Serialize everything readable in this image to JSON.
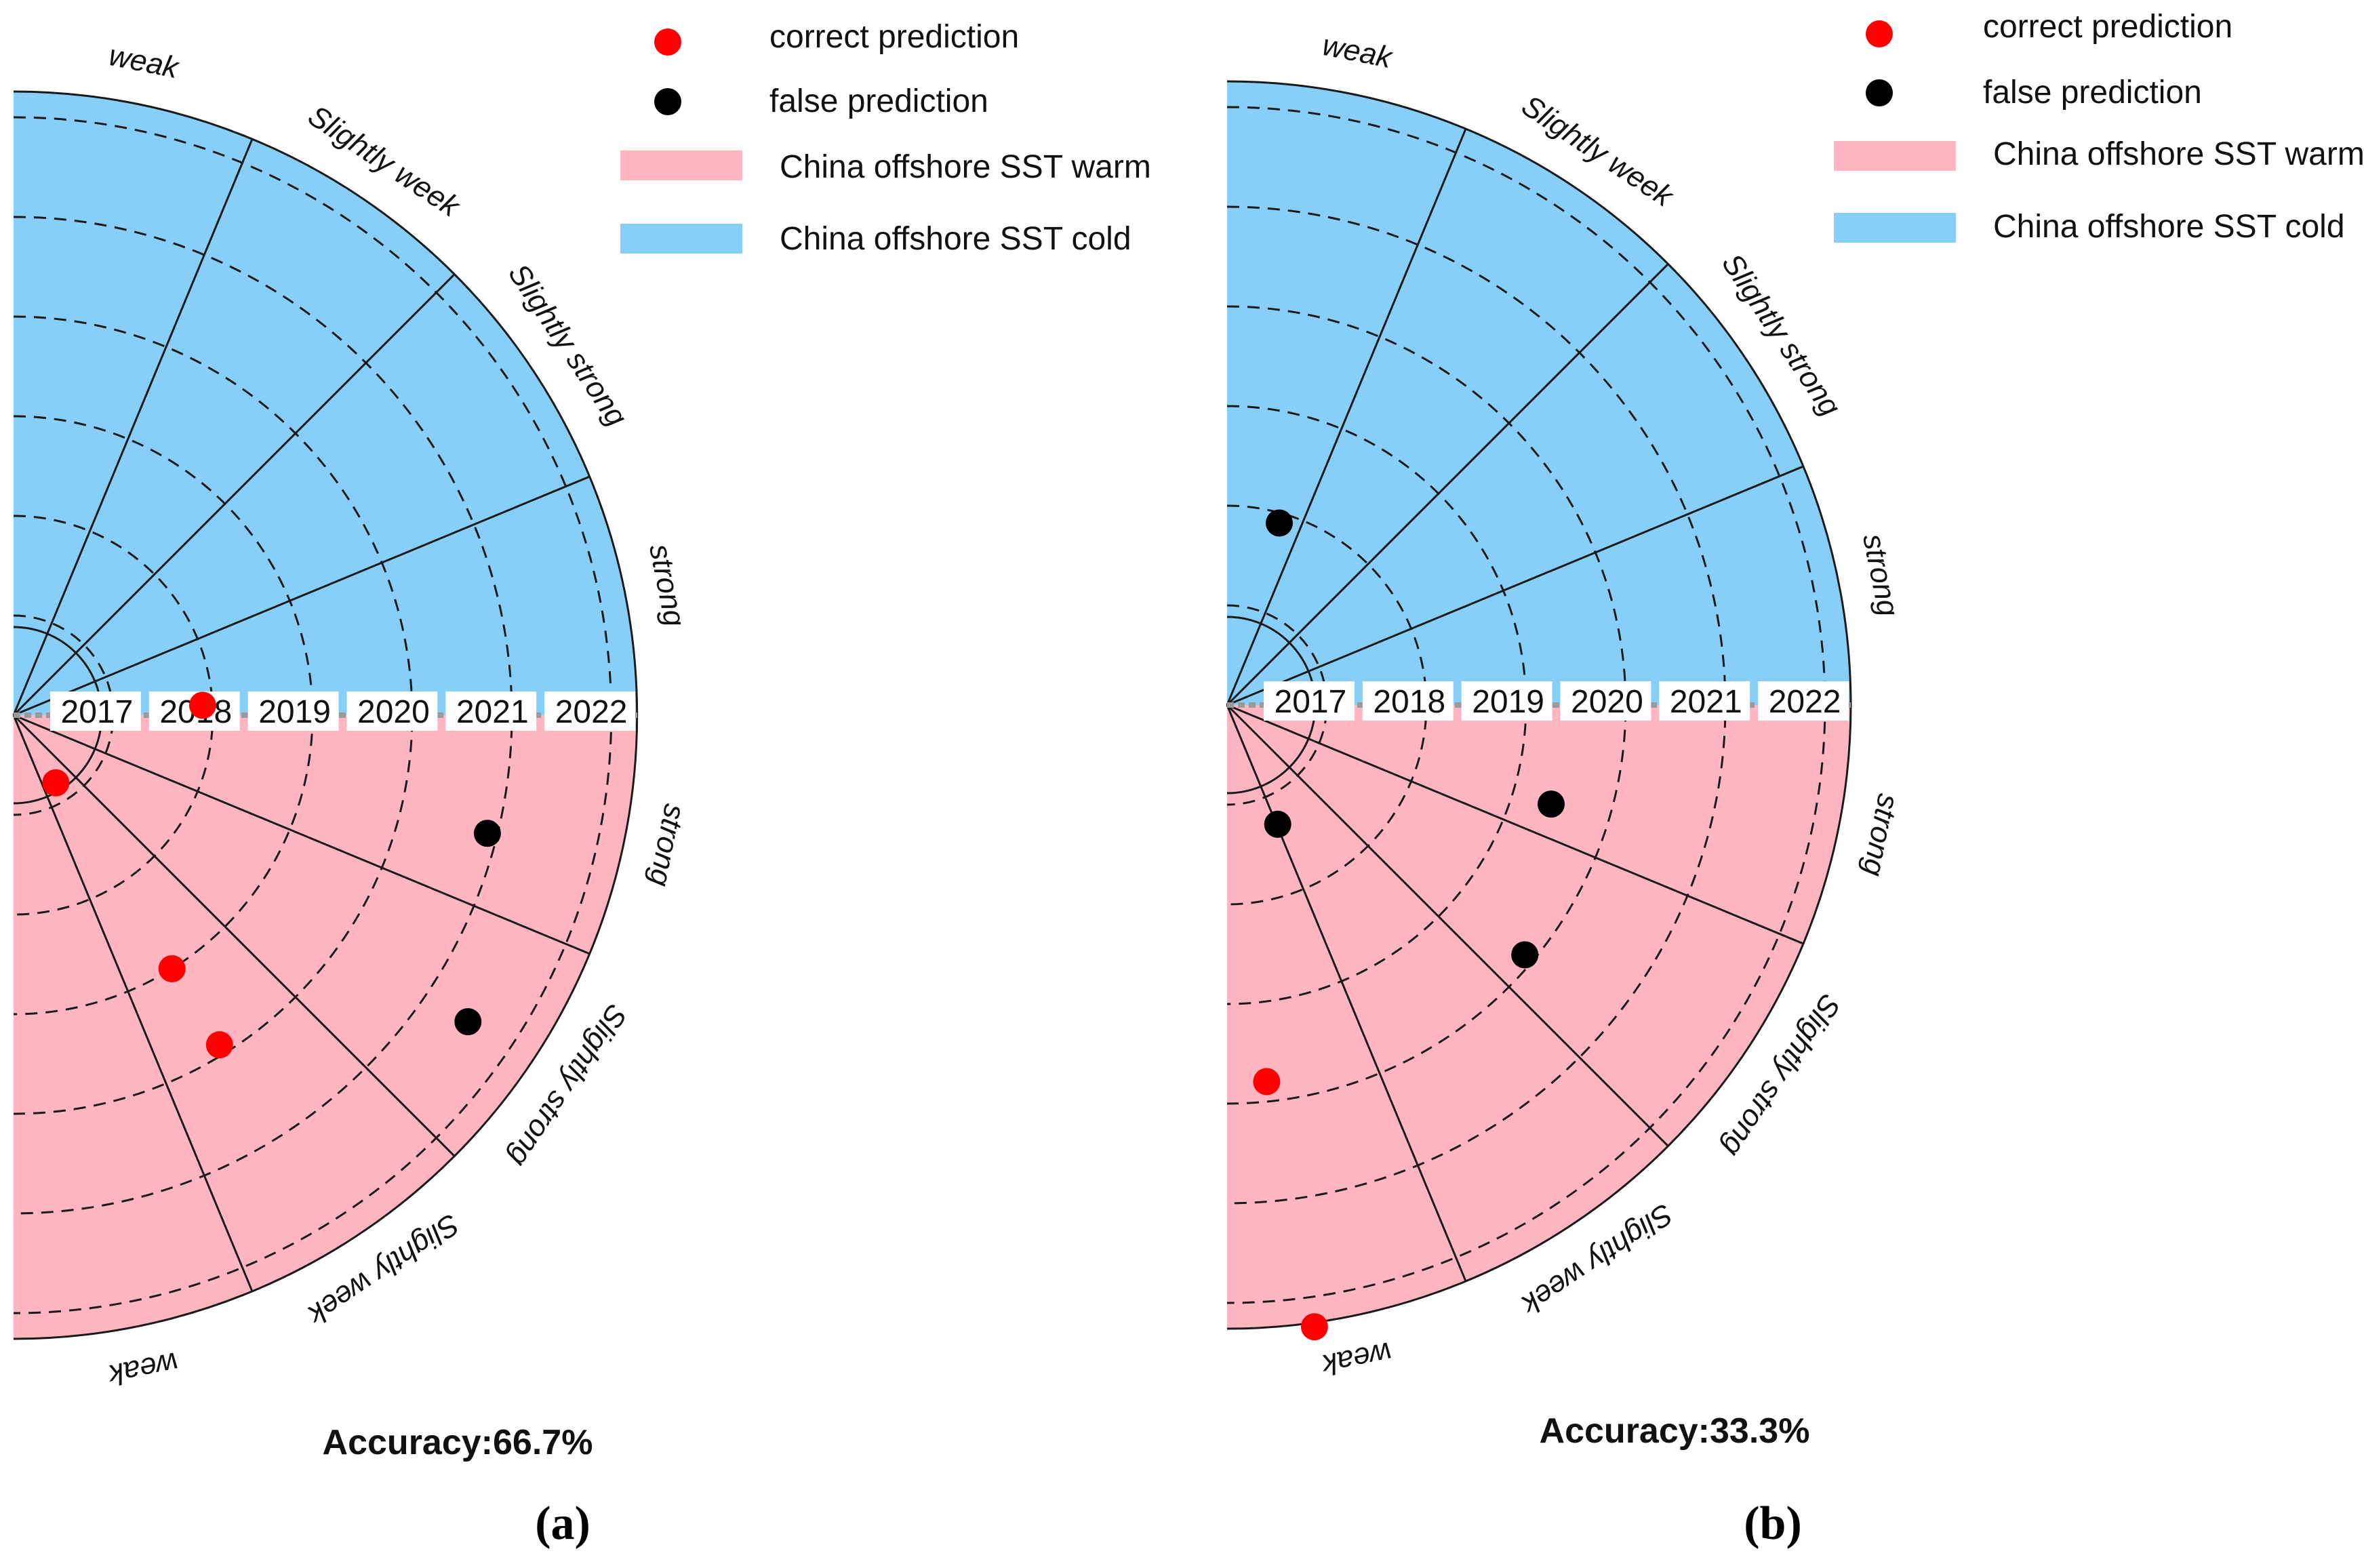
{
  "legend": {
    "correct_label": "correct prediction",
    "false_label": "false prediction",
    "warm_label": "China offshore SST warm",
    "cold_label": "China offshore SST cold"
  },
  "colors": {
    "cold": "#87CEF9",
    "warm": "#FFB6C1",
    "correct": "#FF0000",
    "false": "#000000",
    "grid": "#1a1a1a"
  },
  "chart_data": [
    {
      "type": "polar-scatter",
      "panel_label": "(a)",
      "years": [
        "2017",
        "2018",
        "2019",
        "2020",
        "2021",
        "2022"
      ],
      "cold_sectors": [
        "weak",
        "Slightly week",
        "Slightly strong",
        "strong"
      ],
      "warm_sectors": [
        "strong",
        "Slightly strong",
        "Slightly week",
        "weak"
      ],
      "accuracy_text": "Accuracy:66.7%",
      "accuracy": 66.7,
      "points": [
        {
          "year_index": 1.9,
          "angle_deg": 3,
          "half": "cold",
          "result": "correct"
        },
        {
          "year_index": 0.8,
          "angle_deg": 58,
          "half": "warm",
          "result": "correct"
        },
        {
          "year_index": 4.9,
          "angle_deg": 14,
          "half": "warm",
          "result": "false"
        },
        {
          "year_index": 3.0,
          "angle_deg": 58,
          "half": "warm",
          "result": "correct"
        },
        {
          "year_index": 3.9,
          "angle_deg": 58,
          "half": "warm",
          "result": "correct"
        },
        {
          "year_index": 5.5,
          "angle_deg": 34,
          "half": "warm",
          "result": "false"
        }
      ]
    },
    {
      "type": "polar-scatter",
      "panel_label": "(b)",
      "years": [
        "2017",
        "2018",
        "2019",
        "2020",
        "2021",
        "2022"
      ],
      "cold_sectors": [
        "weak",
        "Slightly week",
        "Slightly strong",
        "strong"
      ],
      "warm_sectors": [
        "strong",
        "Slightly strong",
        "Slightly week",
        "weak"
      ],
      "accuracy_text": "Accuracy:33.3%",
      "accuracy": 33.3,
      "points": [
        {
          "year_index": 1.9,
          "angle_deg": 74,
          "half": "cold",
          "result": "false"
        },
        {
          "year_index": 1.3,
          "angle_deg": 67,
          "half": "warm",
          "result": "false"
        },
        {
          "year_index": 3.4,
          "angle_deg": 17,
          "half": "warm",
          "result": "false"
        },
        {
          "year_index": 3.9,
          "angle_deg": 40,
          "half": "warm",
          "result": "false"
        },
        {
          "year_index": 3.8,
          "angle_deg": 84,
          "half": "warm",
          "result": "correct"
        },
        {
          "year_index": 6.3,
          "angle_deg": 82,
          "half": "warm",
          "result": "correct"
        }
      ]
    }
  ]
}
